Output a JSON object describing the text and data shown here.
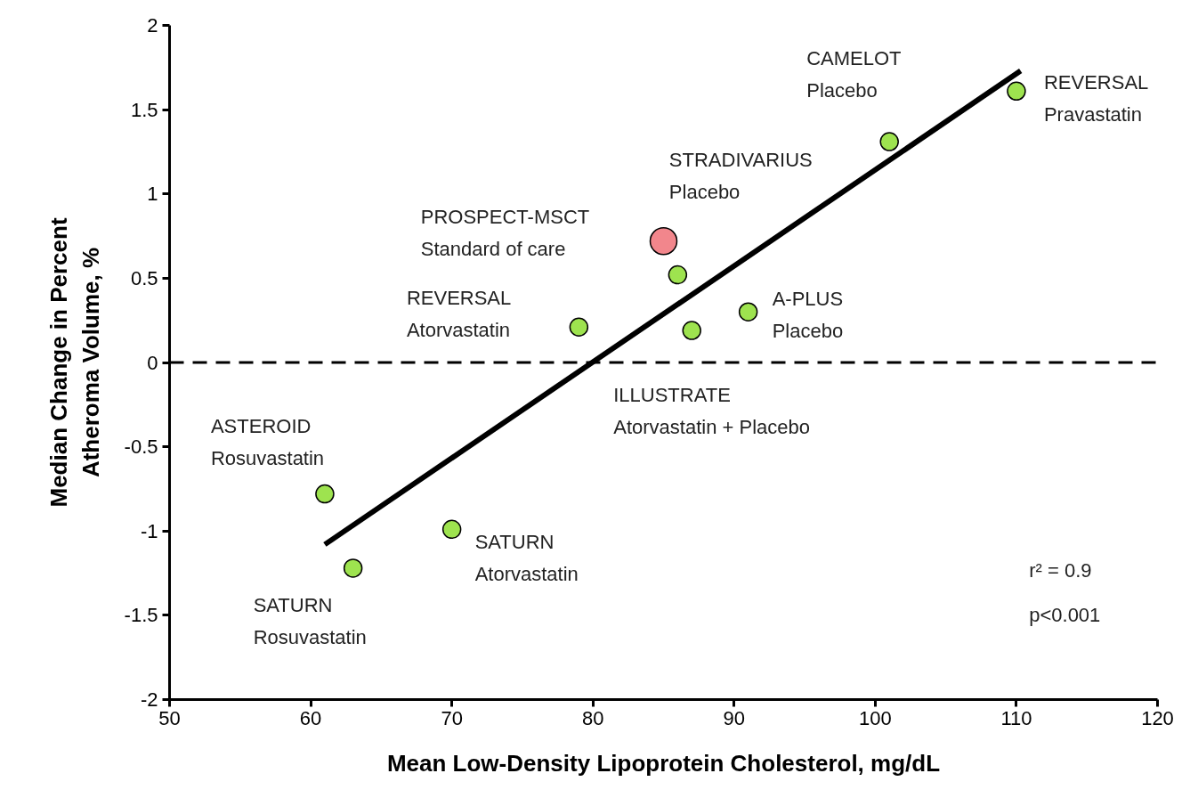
{
  "chart_data": {
    "type": "scatter",
    "xlabel": "Mean Low-Density Lipoprotein Cholesterol, mg/dL",
    "ylabel": "Median Change in Percent\nAtheroma Volume, %",
    "xlim": [
      50,
      120
    ],
    "xticks": [
      50,
      60,
      70,
      80,
      90,
      100,
      110,
      120
    ],
    "ylim": [
      -2,
      2
    ],
    "yticks": [
      -2,
      -1.5,
      -1,
      -0.5,
      0,
      0.5,
      1,
      1.5,
      2
    ],
    "grid": false,
    "series": [
      {
        "color": "#9ee34f",
        "marker": "circle",
        "x": [
          61,
          63,
          70,
          79,
          87,
          86,
          91,
          101,
          110
        ],
        "values": [
          -0.78,
          -1.22,
          -0.99,
          0.21,
          0.19,
          0.52,
          0.3,
          1.31,
          1.61
        ]
      },
      {
        "color": "#f2868c",
        "marker": "circle",
        "x": [
          85
        ],
        "values": [
          0.72
        ]
      },
      {
        "type": "line",
        "color": "#000000",
        "x": [
          61,
          110.3
        ],
        "values": [
          -1.08,
          1.73
        ]
      }
    ],
    "ref_lines": [
      {
        "axis": "y",
        "value": 0,
        "color": "#000000",
        "line_style": "dashed"
      }
    ],
    "annotations": [
      {
        "text": "ASTEROID\nRosuvastatin",
        "x": 61,
        "y": -0.78
      },
      {
        "text": "SATURN\nRosuvastatin",
        "x": 63,
        "y": -1.22
      },
      {
        "text": "SATURN\nAtorvastatin",
        "x": 70,
        "y": -0.99
      },
      "REVERSAL\nAtorvastatin",
      {
        "text": "ILLUSTRATE\nAtorvastatin + Placebo",
        "x": 87,
        "y": 0.19
      },
      "STRADIVARIUS\nPlacebo",
      {
        "text": "A-PLUS\nPlacebo",
        "x": 91,
        "y": 0.3
      },
      {
        "text": "CAMELOT\nPlacebo",
        "x": 101,
        "y": 1.31
      },
      {
        "text": "REVERSAL\nPravastatin",
        "x": 110,
        "y": 1.61
      },
      "PROSPECT-MSCT\nStandard of care",
      "r² = 0.9",
      "p<0.001"
    ]
  }
}
